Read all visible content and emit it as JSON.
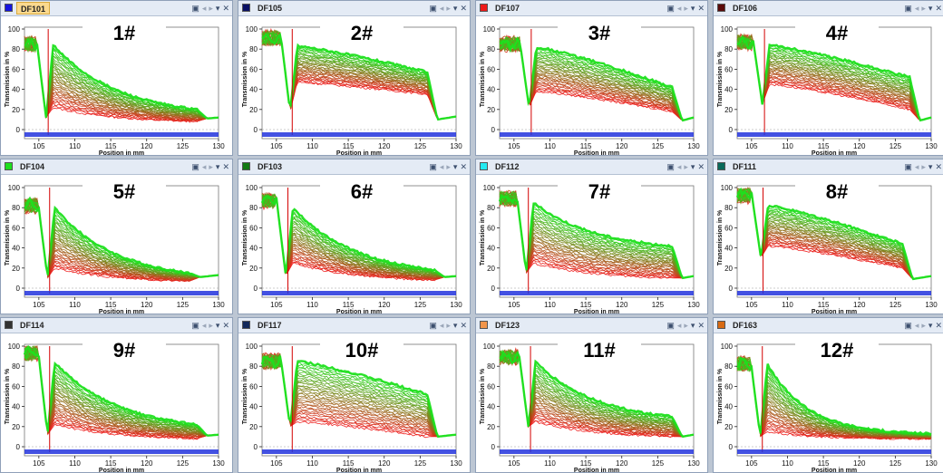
{
  "window_controls": {
    "dock": "▣",
    "prev": "◂",
    "next": "▸",
    "menu": "▾",
    "close": "✕"
  },
  "colors": {
    "high": "#1ee01e",
    "low": "#ee1a1a",
    "baseline": "#2233dd"
  },
  "chart_data": [
    {
      "type": "line",
      "title": "DF101",
      "label": "1#",
      "tab_color": "#1414e0",
      "active": true,
      "xlabel": "Position in mm",
      "ylabel": "Transmission in %",
      "xlim": [
        103,
        130
      ],
      "ylim": [
        0,
        100
      ],
      "xticks": [
        105,
        110,
        115,
        120,
        125,
        130
      ],
      "yticks": [
        0,
        20,
        40,
        60,
        80,
        100
      ],
      "edge_x": 106.3,
      "cell_end_x": 127,
      "peak_top": 84,
      "peak_bottom": 22,
      "end_top": 20,
      "end_bottom": 8,
      "tail": 12,
      "bottom_value": 11,
      "pre_value": 88,
      "dip_value": 12,
      "shape": "decay",
      "notch_x": 110
    },
    {
      "type": "line",
      "title": "DF105",
      "label": "2#",
      "tab_color": "#0a1064",
      "active": false,
      "xlabel": "Position in mm",
      "ylabel": "Transmission in %",
      "xlim": [
        103,
        130
      ],
      "ylim": [
        0,
        100
      ],
      "xticks": [
        105,
        110,
        115,
        120,
        125,
        130
      ],
      "yticks": [
        0,
        20,
        40,
        60,
        80,
        100
      ],
      "edge_x": 107.2,
      "cell_end_x": 126,
      "peak_top": 83,
      "peak_bottom": 47,
      "end_top": 57,
      "end_bottom": 35,
      "tail": 13,
      "bottom_value": 10,
      "pre_value": 94,
      "dip_value": 18,
      "shape": "plateau",
      "notch_x": null
    },
    {
      "type": "line",
      "title": "DF107",
      "label": "3#",
      "tab_color": "#ee1a1a",
      "active": false,
      "xlabel": "Position in mm",
      "ylabel": "Transmission in %",
      "xlim": [
        103,
        130
      ],
      "ylim": [
        0,
        100
      ],
      "xticks": [
        105,
        110,
        115,
        120,
        125,
        130
      ],
      "yticks": [
        0,
        20,
        40,
        60,
        80,
        100
      ],
      "edge_x": 107.4,
      "cell_end_x": 127,
      "peak_top": 82,
      "peak_bottom": 38,
      "end_top": 42,
      "end_bottom": 18,
      "tail": 12,
      "bottom_value": 9,
      "pre_value": 88,
      "dip_value": 22,
      "shape": "plateau",
      "notch_x": null
    },
    {
      "type": "line",
      "title": "DF106",
      "label": "4#",
      "tab_color": "#5a0a0a",
      "active": false,
      "xlabel": "Position in mm",
      "ylabel": "Transmission in %",
      "xlim": [
        103,
        130
      ],
      "ylim": [
        0,
        100
      ],
      "xticks": [
        105,
        110,
        115,
        120,
        125,
        130
      ],
      "yticks": [
        0,
        20,
        40,
        60,
        80,
        100
      ],
      "edge_x": 106.8,
      "cell_end_x": 127,
      "peak_top": 84,
      "peak_bottom": 45,
      "end_top": 52,
      "end_bottom": 20,
      "tail": 12,
      "bottom_value": 9,
      "pre_value": 90,
      "dip_value": 25,
      "shape": "plateau",
      "notch_x": null
    },
    {
      "type": "line",
      "title": "DF104",
      "label": "5#",
      "tab_color": "#1ee01e",
      "active": false,
      "xlabel": "Position in mm",
      "ylabel": "Transmission in %",
      "xlim": [
        103,
        130
      ],
      "ylim": [
        0,
        100
      ],
      "xticks": [
        105,
        110,
        115,
        120,
        125,
        130
      ],
      "yticks": [
        0,
        20,
        40,
        60,
        80,
        100
      ],
      "edge_x": 106.5,
      "cell_end_x": 126,
      "peak_top": 80,
      "peak_bottom": 20,
      "end_top": 15,
      "end_bottom": 7,
      "tail": 13,
      "bottom_value": 11,
      "pre_value": 85,
      "dip_value": 10,
      "shape": "decay",
      "notch_x": null
    },
    {
      "type": "line",
      "title": "DF103",
      "label": "6#",
      "tab_color": "#137a13",
      "active": false,
      "xlabel": "Position in mm",
      "ylabel": "Transmission in %",
      "xlim": [
        103,
        130
      ],
      "ylim": [
        0,
        100
      ],
      "xticks": [
        105,
        110,
        115,
        120,
        125,
        130
      ],
      "yticks": [
        0,
        20,
        40,
        60,
        80,
        100
      ],
      "edge_x": 106.6,
      "cell_end_x": 127,
      "peak_top": 80,
      "peak_bottom": 25,
      "end_top": 18,
      "end_bottom": 8,
      "tail": 12,
      "bottom_value": 11,
      "pre_value": 90,
      "dip_value": 12,
      "shape": "decay",
      "notch_x": null
    },
    {
      "type": "line",
      "title": "DF112",
      "label": "7#",
      "tab_color": "#22eaf2",
      "active": false,
      "xlabel": "Position in mm",
      "ylabel": "Transmission in %",
      "xlim": [
        103,
        130
      ],
      "ylim": [
        0,
        100
      ],
      "xticks": [
        105,
        110,
        115,
        120,
        125,
        130
      ],
      "yticks": [
        0,
        20,
        40,
        60,
        80,
        100
      ],
      "edge_x": 107.0,
      "cell_end_x": 127,
      "peak_top": 85,
      "peak_bottom": 25,
      "end_top": 42,
      "end_bottom": 10,
      "tail": 12,
      "bottom_value": 10,
      "pre_value": 92,
      "dip_value": 15,
      "shape": "decay",
      "notch_x": null
    },
    {
      "type": "line",
      "title": "DF111",
      "label": "8#",
      "tab_color": "#0a6a5a",
      "active": false,
      "xlabel": "Position in mm",
      "ylabel": "Transmission in %",
      "xlim": [
        103,
        130
      ],
      "ylim": [
        0,
        100
      ],
      "xticks": [
        105,
        110,
        115,
        120,
        125,
        130
      ],
      "yticks": [
        0,
        20,
        40,
        60,
        80,
        100
      ],
      "edge_x": 106.6,
      "cell_end_x": 126,
      "peak_top": 82,
      "peak_bottom": 42,
      "end_top": 44,
      "end_bottom": 20,
      "tail": 12,
      "bottom_value": 9,
      "pre_value": 95,
      "dip_value": 30,
      "shape": "plateau",
      "notch_x": null
    },
    {
      "type": "line",
      "title": "DF114",
      "label": "9#",
      "tab_color": "#333333",
      "active": false,
      "xlabel": "Position in mm",
      "ylabel": "Transmission in %",
      "xlim": [
        103,
        130
      ],
      "ylim": [
        0,
        100
      ],
      "xticks": [
        105,
        110,
        115,
        120,
        125,
        130
      ],
      "yticks": [
        0,
        20,
        40,
        60,
        80,
        100
      ],
      "edge_x": 106.5,
      "cell_end_x": 127,
      "peak_top": 84,
      "peak_bottom": 22,
      "end_top": 22,
      "end_bottom": 8,
      "tail": 12,
      "bottom_value": 11,
      "pre_value": 96,
      "dip_value": 12,
      "shape": "decay",
      "notch_x": null
    },
    {
      "type": "line",
      "title": "DF117",
      "label": "10#",
      "tab_color": "#13295a",
      "active": false,
      "xlabel": "Position in mm",
      "ylabel": "Transmission in %",
      "xlim": [
        103,
        130
      ],
      "ylim": [
        0,
        100
      ],
      "xticks": [
        105,
        110,
        115,
        120,
        125,
        130
      ],
      "yticks": [
        0,
        20,
        40,
        60,
        80,
        100
      ],
      "edge_x": 107.2,
      "cell_end_x": 126,
      "peak_top": 85,
      "peak_bottom": 25,
      "end_top": 52,
      "end_bottom": 10,
      "tail": 12,
      "bottom_value": 10,
      "pre_value": 88,
      "dip_value": 20,
      "shape": "plateau",
      "notch_x": null
    },
    {
      "type": "line",
      "title": "DF123",
      "label": "11#",
      "tab_color": "#f2954a",
      "active": false,
      "xlabel": "Position in mm",
      "ylabel": "Transmission in %",
      "xlim": [
        103,
        130
      ],
      "ylim": [
        0,
        100
      ],
      "xticks": [
        105,
        110,
        115,
        120,
        125,
        130
      ],
      "yticks": [
        0,
        20,
        40,
        60,
        80,
        100
      ],
      "edge_x": 107.3,
      "cell_end_x": 127,
      "peak_top": 84,
      "peak_bottom": 25,
      "end_top": 30,
      "end_bottom": 10,
      "tail": 12,
      "bottom_value": 10,
      "pre_value": 92,
      "dip_value": 20,
      "shape": "decay",
      "notch_x": null
    },
    {
      "type": "line",
      "title": "DF163",
      "label": "12#",
      "tab_color": "#d86a12",
      "active": false,
      "xlabel": "Position in mm",
      "ylabel": "Transmission in %",
      "xlim": [
        103,
        130
      ],
      "ylim": [
        0,
        100
      ],
      "xticks": [
        105,
        110,
        115,
        120,
        125,
        130
      ],
      "yticks": [
        0,
        20,
        40,
        60,
        80,
        100
      ],
      "edge_x": 106.5,
      "cell_end_x": 130,
      "peak_top": 82,
      "peak_bottom": 15,
      "end_top": 13,
      "end_bottom": 8,
      "tail": 13,
      "bottom_value": 10,
      "pre_value": 85,
      "dip_value": 10,
      "shape": "fast",
      "notch_x": null
    }
  ]
}
